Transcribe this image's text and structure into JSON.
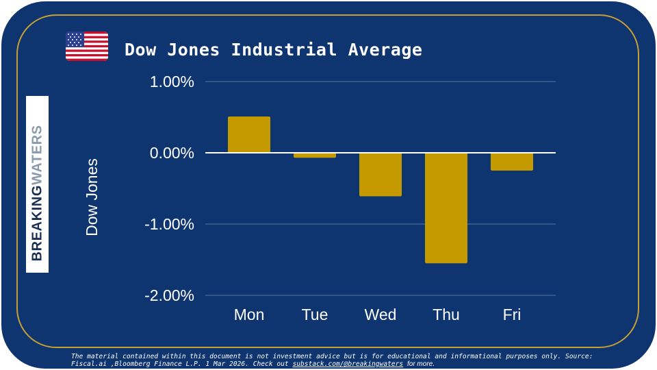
{
  "header": {
    "title": "Dow Jones Industrial Average",
    "flag_icon": "us-flag-icon"
  },
  "logo": {
    "part1": "BREAKING",
    "part2": "WATERS"
  },
  "colors": {
    "background": "#0f3570",
    "frame": "#c8a032",
    "bar": "#c49a00",
    "grid": "#4a6a9a",
    "zero_line": "#ffffff",
    "text": "#ffffff"
  },
  "chart_data": {
    "type": "bar",
    "title": "Dow Jones Industrial Average",
    "xlabel": "",
    "ylabel": "Dow Jones",
    "categories": [
      "Mon",
      "Tue",
      "Wed",
      "Thu",
      "Fri"
    ],
    "values": [
      0.51,
      -0.07,
      -0.61,
      -1.55,
      -0.25
    ],
    "ylim": [
      -2.0,
      1.0
    ],
    "yticks": [
      1.0,
      0.0,
      -1.0,
      -2.0
    ],
    "ytick_labels": [
      "1.00%",
      "0.00%",
      "-1.00%",
      "-2.00%"
    ],
    "grid": true,
    "legend": "none"
  },
  "footer": {
    "disclaimer": "The material contained within this document is not investment advice but is for educational and informational purposes only. Source: Fiscal.ai ,Bloomberg Finance L.P. 1 Mar 2026. Check out",
    "link": "substack.com/@breakingwaters",
    "tail": "for more."
  }
}
